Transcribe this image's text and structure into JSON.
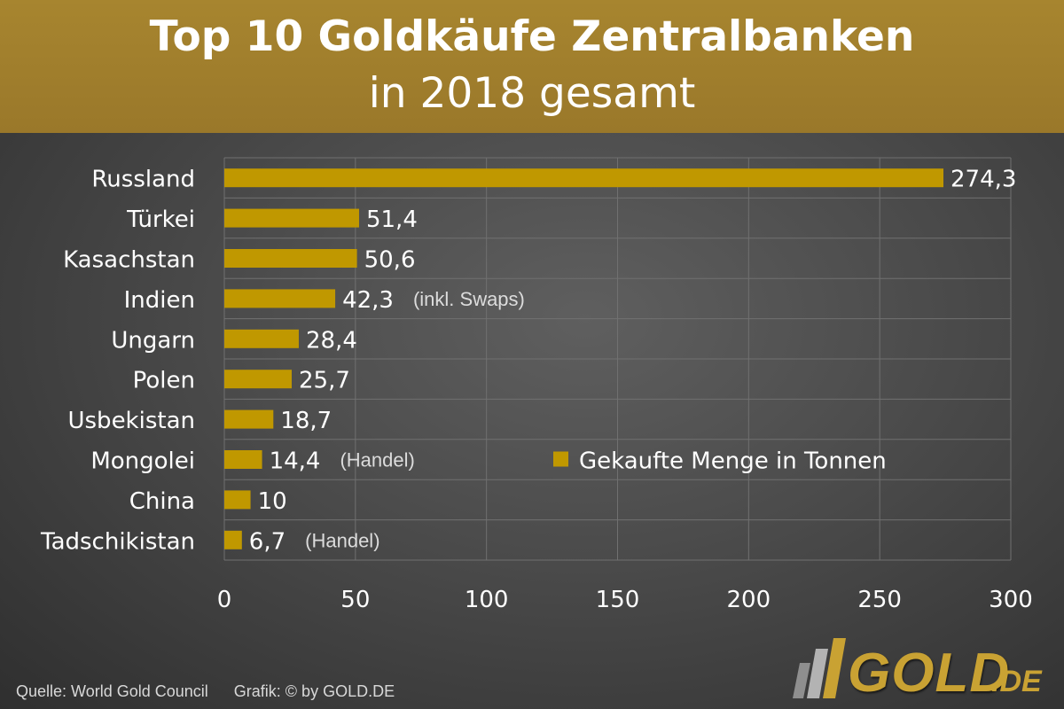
{
  "header": {
    "title": "Top 10 Goldkäufe Zentralbanken",
    "subtitle": "in 2018 gesamt"
  },
  "footer": {
    "source": "Quelle: World Gold Council",
    "credit": "Grafik: © by GOLD.DE"
  },
  "logo": {
    "text": "GOLD",
    "suffix": ".DE"
  },
  "colors": {
    "bar": "#c09800",
    "banner": "#a2802d",
    "text": "#ffffff",
    "grid": "#707070"
  },
  "chart_data": {
    "type": "bar",
    "orientation": "horizontal",
    "categories": [
      "Russland",
      "Türkei",
      "Kasachstan",
      "Indien",
      "Ungarn",
      "Polen",
      "Usbekistan",
      "Mongolei",
      "China",
      "Tadschikistan"
    ],
    "values": [
      274.3,
      51.4,
      50.6,
      42.3,
      28.4,
      25.7,
      18.7,
      14.4,
      10,
      6.7
    ],
    "value_labels": [
      "274,3",
      "51,4",
      "50,6",
      "42,3",
      "28,4",
      "25,7",
      "18,7",
      "14,4",
      "10",
      "6,7"
    ],
    "annotations": [
      "",
      "",
      "",
      "(inkl. Swaps)",
      "",
      "",
      "",
      "(Handel)",
      "",
      "(Handel)"
    ],
    "xlim": [
      0,
      300
    ],
    "xticks": [
      0,
      50,
      100,
      150,
      200,
      250,
      300
    ],
    "series": [
      {
        "name": "Gekaufte Menge in Tonnen"
      }
    ],
    "legend_position": "right",
    "grid": true
  }
}
